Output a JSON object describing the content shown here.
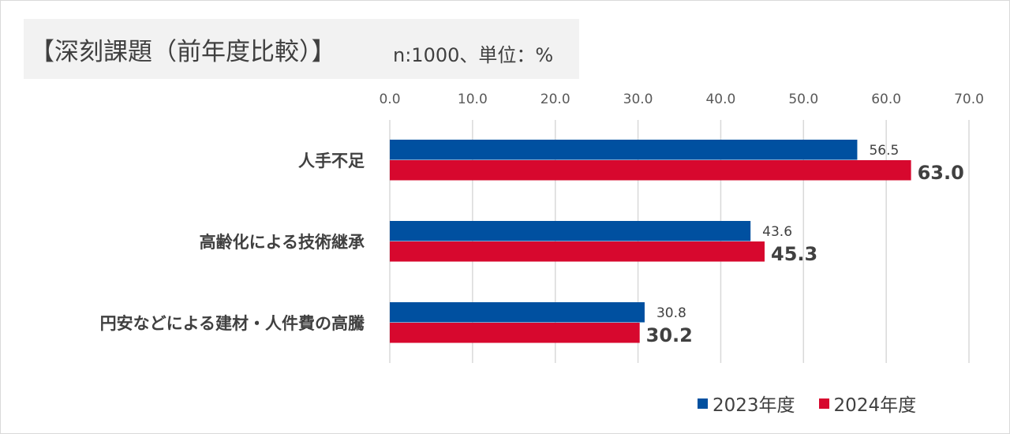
{
  "chart_data": {
    "type": "bar",
    "orientation": "horizontal",
    "title": "【深刻課題（前年度比較）】",
    "subtitle": "n:1000、単位：%",
    "categories": [
      "人手不足",
      "高齢化による技術継承",
      "円安などによる建材・人件費の高騰"
    ],
    "series": [
      {
        "name": "2023年度",
        "color": "#0050a0",
        "values": [
          56.5,
          43.6,
          30.8
        ],
        "labels": [
          "56.5",
          "43.6",
          "30.8"
        ]
      },
      {
        "name": "2024年度",
        "color": "#d7082e",
        "values": [
          63.0,
          45.3,
          30.2
        ],
        "labels": [
          "63.0",
          "45.3",
          "30.2"
        ]
      }
    ],
    "xlim": [
      0,
      70
    ],
    "xticks": [
      "0.0",
      "10.0",
      "20.0",
      "30.0",
      "40.0",
      "50.0",
      "60.0",
      "70.0"
    ],
    "grid": true,
    "legend_position": "bottom-right"
  }
}
